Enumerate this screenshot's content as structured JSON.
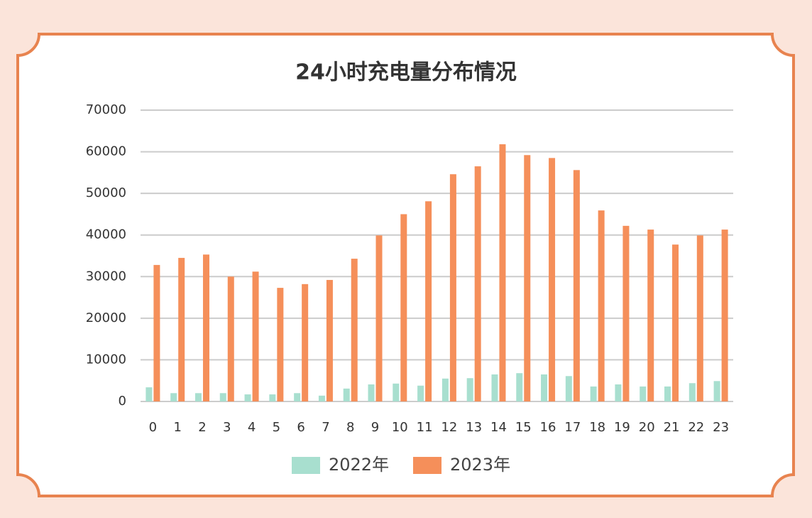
{
  "chart_data": {
    "type": "bar",
    "title": "24小时充电量分布情况",
    "categories": [
      "0",
      "1",
      "2",
      "3",
      "4",
      "5",
      "6",
      "7",
      "8",
      "9",
      "10",
      "11",
      "12",
      "13",
      "14",
      "15",
      "16",
      "17",
      "18",
      "19",
      "20",
      "21",
      "22",
      "23"
    ],
    "series": [
      {
        "name": "2022年",
        "color": "#a8dfcf",
        "values": [
          3400,
          2000,
          2000,
          2000,
          1700,
          1700,
          2000,
          1400,
          3100,
          4100,
          4300,
          3800,
          5500,
          5600,
          6500,
          6800,
          6500,
          6100,
          3600,
          4100,
          3600,
          3600,
          4400,
          4900
        ]
      },
      {
        "name": "2023年",
        "color": "#f58f5a",
        "values": [
          32800,
          34500,
          35300,
          30000,
          31200,
          27300,
          28200,
          29200,
          34300,
          39900,
          45000,
          48100,
          54600,
          56500,
          61800,
          59200,
          58500,
          55600,
          45900,
          42200,
          41300,
          37700,
          39900,
          41300
        ]
      }
    ],
    "ylim": [
      0,
      70000
    ],
    "yticks": [
      0,
      10000,
      20000,
      30000,
      40000,
      50000,
      60000,
      70000
    ],
    "grid": true,
    "legend": "bottom"
  }
}
